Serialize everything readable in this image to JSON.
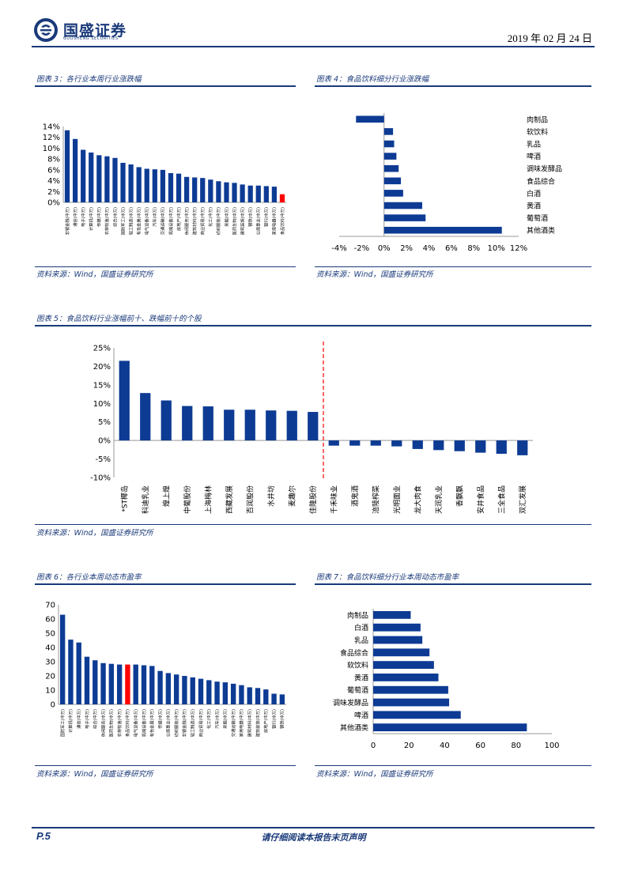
{
  "header": {
    "logo_cn": "国盛证券",
    "logo_en": "GUOSHENG SECURITIES",
    "date": "2019 年 02 月 24 日"
  },
  "figures": {
    "fig3": {
      "title": "图表 3：各行业本周行业涨跌幅",
      "source": "资料来源：Wind，国盛证券研究所"
    },
    "fig4": {
      "title": "图表 4：食品饮料细分行业涨跌幅",
      "source": "资料来源：Wind，国盛证券研究所"
    },
    "fig5": {
      "title": "图表 5：食品饮料行业涨幅前十、跌幅前十的个股",
      "source": "资料来源：Wind，国盛证券研究所"
    },
    "fig6": {
      "title": "图表 6：各行业本周动态市盈率",
      "source": "资料来源：Wind，国盛证券研究所"
    },
    "fig7": {
      "title": "图表 7：食品饮料细分行业本周动态市盈率",
      "source": "资料来源：Wind，国盛证券研究所"
    }
  },
  "footer": {
    "page": "P.5",
    "note": "请仔细阅读本报告末页声明"
  },
  "chart_data": [
    {
      "id": "fig3",
      "type": "bar",
      "title": "各行业本周行业涨跌幅",
      "categories": [
        "非银金融(中万)",
        "通信(中万)",
        "电子(中万)",
        "计算机(中万)",
        "传媒(中万)",
        "农林牧渔(中万)",
        "综合(中万)",
        "国防军工(中万)",
        "轻工制造(中万)",
        "有色金属(中万)",
        "电气设备(中万)",
        "汽车(中万)",
        "交通运输(中万)",
        "机械设备(中万)",
        "房地产(中万)",
        "休闲服务(中万)",
        "建筑材料(中万)",
        "商业贸易(中万)",
        "化工(中万)",
        "纺织服装(中万)",
        "采掘(中万)",
        "医药生物(中万)",
        "建筑装饰(中万)",
        "钢铁(中万)",
        "公用事业(中万)",
        "银行(中万)",
        "家用电器(中万)",
        "食品饮料(中万)"
      ],
      "values": [
        13.3,
        11.7,
        9.7,
        9.2,
        8.7,
        8.5,
        8.2,
        7.3,
        7.0,
        6.5,
        6.2,
        6.1,
        6.0,
        5.4,
        5.3,
        4.7,
        4.6,
        4.5,
        4.2,
        3.9,
        3.7,
        3.6,
        3.3,
        3.1,
        3.1,
        3.0,
        2.9,
        1.5
      ],
      "highlight_index": 27,
      "colors": {
        "bar": "#0d3b94",
        "highlight": "#ff0000"
      },
      "y_ticks": [
        "14%",
        "12%",
        "10%",
        "8%",
        "6%",
        "4%",
        "2%",
        "0%"
      ],
      "ylim": [
        0,
        14
      ]
    },
    {
      "id": "fig4",
      "type": "bar",
      "orientation": "horizontal",
      "title": "食品饮料细分行业涨跌幅",
      "categories": [
        "肉制品",
        "软饮料",
        "乳品",
        "啤酒",
        "调味发酵品",
        "食品综合",
        "白酒",
        "黄酒",
        "葡萄酒",
        "其他酒类"
      ],
      "values": [
        -2.5,
        0.8,
        0.9,
        1.1,
        1.3,
        1.5,
        1.7,
        3.4,
        3.7,
        10.5
      ],
      "x_ticks": [
        "-4%",
        "-2%",
        "0%",
        "2%",
        "4%",
        "6%",
        "8%",
        "10%",
        "12%"
      ],
      "xlim": [
        -4,
        12
      ],
      "colors": {
        "bar": "#0d3b94"
      }
    },
    {
      "id": "fig5",
      "type": "bar",
      "title": "食品饮料行业涨幅前十、跌幅前十的个股",
      "categories": [
        "*ST椰岛",
        "科迪乳业",
        "煌上煌",
        "中葡股份",
        "上海梅林",
        "西藏发展",
        "百润股份",
        "水井坊",
        "麦趣尔",
        "佳隆股份",
        "千禾味业",
        "酒鬼酒",
        "涪陵榨菜",
        "光明面业",
        "龙大肉食",
        "天润乳业",
        "香飘飘",
        "安井食品",
        "三全食品",
        "双汇发展"
      ],
      "values": [
        21.5,
        12.8,
        10.8,
        9.3,
        9.2,
        8.3,
        8.3,
        8.1,
        8.0,
        7.7,
        -1.4,
        -1.4,
        -1.4,
        -1.6,
        -2.3,
        -2.6,
        -2.9,
        -3.3,
        -3.6,
        -4.0
      ],
      "divider_after_index": 9,
      "y_ticks": [
        "25%",
        "20%",
        "15%",
        "10%",
        "5%",
        "0%",
        "-5%",
        "-10%"
      ],
      "ylim": [
        -10,
        25
      ],
      "colors": {
        "bar": "#0d3b94",
        "divider": "#ff0000"
      }
    },
    {
      "id": "fig6",
      "type": "bar",
      "title": "各行业本周动态市盈率",
      "categories": [
        "国防军工(中万)",
        "计算机(中万)",
        "通信(中万)",
        "电子(中万)",
        "综合(中万)",
        "休闲服务(中万)",
        "医药生物(中万)",
        "农林牧渔(中万)",
        "食品饮料(中万)",
        "电气设备(中万)",
        "机械设备(中万)",
        "有色金属(中万)",
        "传媒(中万)",
        "公用事业(中万)",
        "纺织服装(中万)",
        "非银金融(中万)",
        "轻工制造(中万)",
        "商业贸易(中万)",
        "化工(中万)",
        "汽车(中万)",
        "采掘(中万)",
        "交通运输(中万)",
        "家用电器(中万)",
        "建筑材料(中万)",
        "建筑装饰(中万)",
        "房地产(中万)",
        "银行(中万)",
        "钢铁(中万)"
      ],
      "values": [
        63,
        45.5,
        43.5,
        33.5,
        31,
        29,
        28.5,
        28,
        28,
        28,
        27.5,
        27,
        23.5,
        22,
        21,
        20,
        19,
        18,
        17,
        16,
        15.5,
        14.5,
        13.5,
        12,
        11.5,
        10.5,
        7.5,
        7
      ],
      "highlight_index": 8,
      "y_ticks": [
        "70",
        "60",
        "50",
        "40",
        "30",
        "20",
        "10",
        "0"
      ],
      "ylim": [
        0,
        70
      ],
      "colors": {
        "bar": "#0d3b94",
        "highlight": "#ff0000"
      }
    },
    {
      "id": "fig7",
      "type": "bar",
      "orientation": "horizontal",
      "title": "食品饮料细分行业本周动态市盈率",
      "categories": [
        "肉制品",
        "白酒",
        "乳品",
        "食品综合",
        "软饮料",
        "黄酒",
        "葡萄酒",
        "调味发酵品",
        "啤酒",
        "其他酒类"
      ],
      "values": [
        21,
        26.5,
        27.5,
        31.5,
        34,
        36.5,
        42,
        42.5,
        49,
        86
      ],
      "x_ticks": [
        "0",
        "20",
        "40",
        "60",
        "80",
        "100"
      ],
      "xlim": [
        0,
        100
      ],
      "colors": {
        "bar": "#0d3b94"
      }
    }
  ]
}
